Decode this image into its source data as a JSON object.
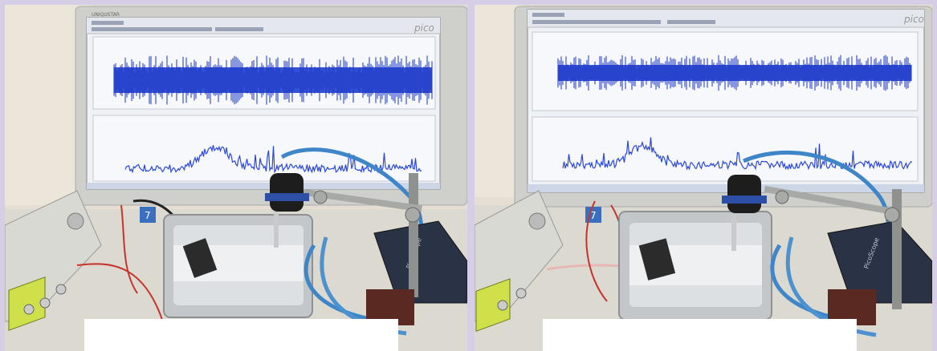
{
  "photos": [
    {
      "monitor_brand": "UNIQUSTAR",
      "software_logo": "pico",
      "taskbar_os_badge": "7",
      "scope_device_label": "PicoScope",
      "trace_top_color": "#1f3fd0",
      "trace_bottom_color": "#2a48d8"
    },
    {
      "monitor_brand": "",
      "software_logo": "pico",
      "taskbar_os_badge": "7",
      "scope_device_label": "PicoScope",
      "trace_top_color": "#1f3fd0",
      "trace_bottom_color": "#2a48d8"
    }
  ],
  "colors": {
    "wall": "#e3dbcf",
    "monitor_bezel": "#cfcfcd",
    "screen_bg": "#eef1f6",
    "desk": "#dddad2",
    "cable_blue": "#3f86c8",
    "cable_red": "#c8322a",
    "steel_tray": "#c9cbcd",
    "generator_body": "#d9d9d3",
    "lcd": "#cfe04a"
  }
}
